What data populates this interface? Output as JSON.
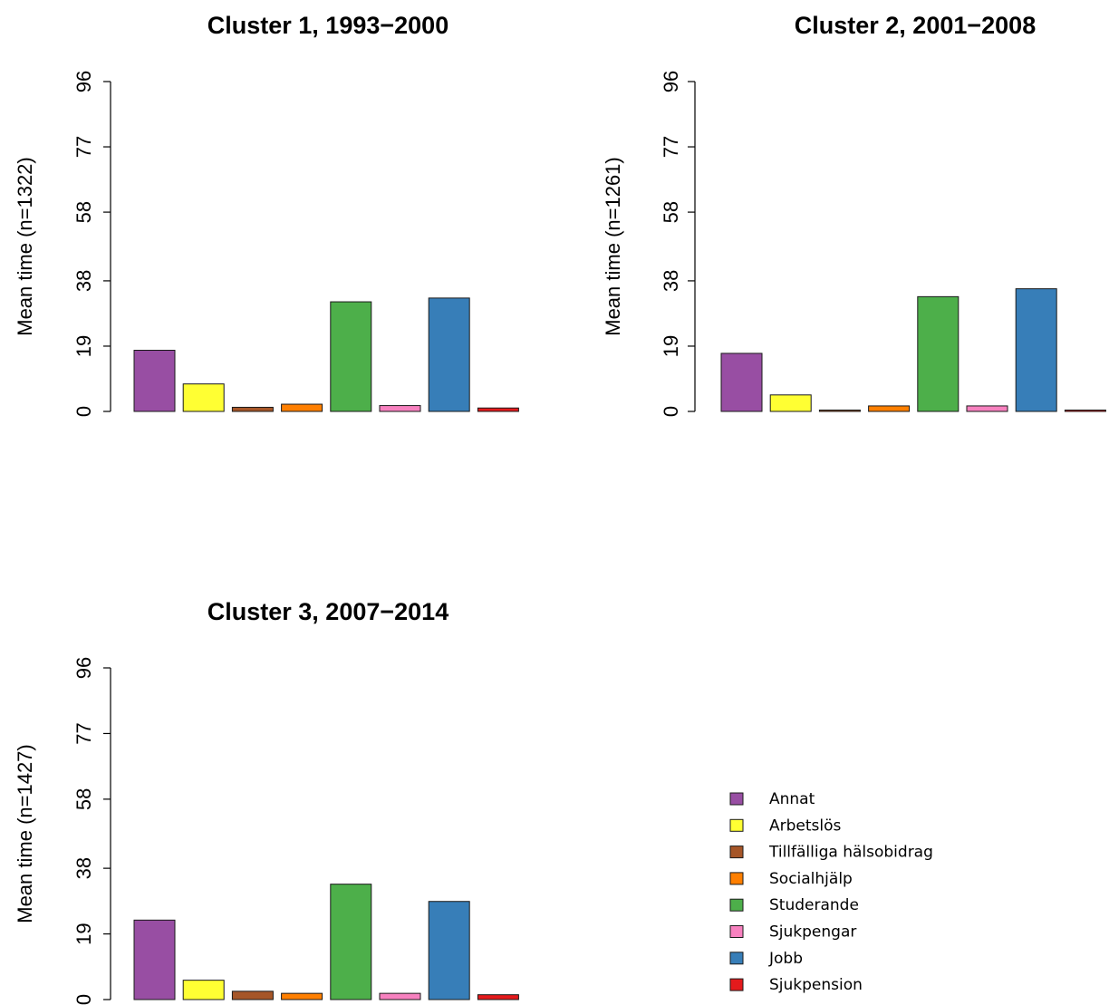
{
  "chart_data": [
    {
      "type": "bar",
      "title": "Cluster 1, 1993−2000",
      "ylabel": "Mean time (n=1322)",
      "ylim": [
        0,
        96
      ],
      "yticks": [
        "0",
        "19",
        "38",
        "58",
        "77",
        "96"
      ],
      "categories": [
        "Annat",
        "Arbetslös",
        "Tillfälliga hälsobidrag",
        "Socialhjälp",
        "Studerande",
        "Sjukpengar",
        "Jobb",
        "Sjukpension"
      ],
      "values": [
        17.8,
        8.0,
        1.2,
        2.1,
        31.9,
        1.7,
        33.0,
        1.0
      ]
    },
    {
      "type": "bar",
      "title": "Cluster 2, 2001−2008",
      "ylabel": "Mean time (n=1261)",
      "ylim": [
        0,
        96
      ],
      "yticks": [
        "0",
        "19",
        "38",
        "58",
        "77",
        "96"
      ],
      "categories": [
        "Annat",
        "Arbetslös",
        "Tillfälliga hälsobidrag",
        "Socialhjälp",
        "Studerande",
        "Sjukpengar",
        "Jobb",
        "Sjukpension"
      ],
      "values": [
        16.9,
        4.8,
        0.4,
        1.6,
        33.4,
        1.6,
        35.7,
        0.4
      ]
    },
    {
      "type": "bar",
      "title": "Cluster 3, 2007−2014",
      "ylabel": "Mean time (n=1427)",
      "ylim": [
        0,
        96
      ],
      "yticks": [
        "0",
        "19",
        "38",
        "58",
        "77",
        "96"
      ],
      "categories": [
        "Annat",
        "Arbetslös",
        "Tillfälliga hälsobidrag",
        "Socialhjälp",
        "Studerande",
        "Sjukpengar",
        "Jobb",
        "Sjukpension"
      ],
      "values": [
        23.0,
        5.6,
        2.4,
        1.8,
        33.4,
        1.8,
        28.4,
        1.4
      ]
    }
  ],
  "colors": [
    "#984ea3",
    "#ffff33",
    "#a65628",
    "#ff7f00",
    "#4daf4a",
    "#f781bf",
    "#377eb8",
    "#e41a1c"
  ],
  "legend": {
    "placement": "bottom-right",
    "items": [
      "Annat",
      "Arbetslös",
      "Tillfälliga hälsobidrag",
      "Socialhjälp",
      "Studerande",
      "Sjukpengar",
      "Jobb",
      "Sjukpension"
    ]
  }
}
